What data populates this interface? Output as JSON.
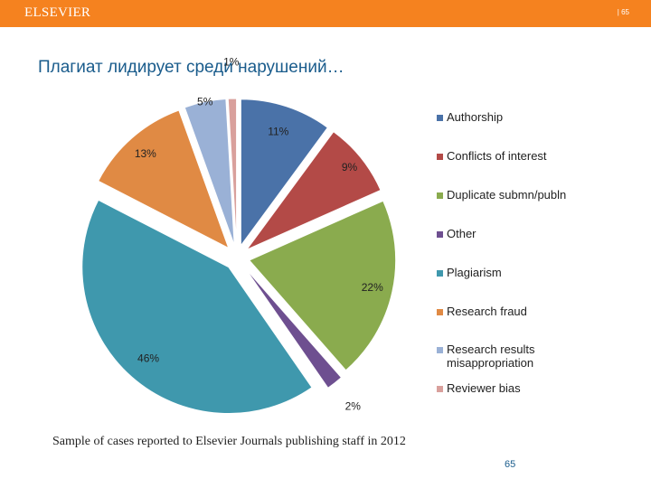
{
  "header": {
    "brand": "ELSEVIER",
    "page_small": "| 65"
  },
  "slide": {
    "title": "Плагиат лидирует среди нарушений…",
    "caption": "Sample of cases reported to Elsevier Journals publishing staff in 2012",
    "page_number": "65"
  },
  "chart_data": {
    "type": "pie",
    "title": "",
    "categories": [
      "Authorship",
      "Conflicts of interest",
      "Duplicate submn/publn",
      "Other",
      "Plagiarism",
      "Research fraud",
      "Research results misappropriation",
      "Reviewer bias"
    ],
    "values": [
      11,
      9,
      22,
      2,
      46,
      13,
      5,
      1
    ],
    "labels": [
      "11%",
      "9%",
      "22%",
      "2%",
      "46%",
      "13%",
      "5%",
      "1%"
    ],
    "colors": [
      "#4a72a8",
      "#b34a47",
      "#8aab4e",
      "#6e4f90",
      "#3f98ad",
      "#e08a44",
      "#9ab1d6",
      "#d9a09c"
    ],
    "exploded": true,
    "legend_position": "right"
  },
  "legend": {
    "items": [
      {
        "label": "Authorship",
        "color": "#4a72a8"
      },
      {
        "label": "Conflicts of interest",
        "color": "#b34a47"
      },
      {
        "label": "Duplicate submn/publn",
        "color": "#8aab4e"
      },
      {
        "label": "Other",
        "color": "#6e4f90"
      },
      {
        "label": "Plagiarism",
        "color": "#3f98ad"
      },
      {
        "label": "Research fraud",
        "color": "#e08a44"
      },
      {
        "label": "Research results misappropriation",
        "color": "#9ab1d6"
      },
      {
        "label": "Reviewer bias",
        "color": "#d9a09c"
      }
    ]
  }
}
